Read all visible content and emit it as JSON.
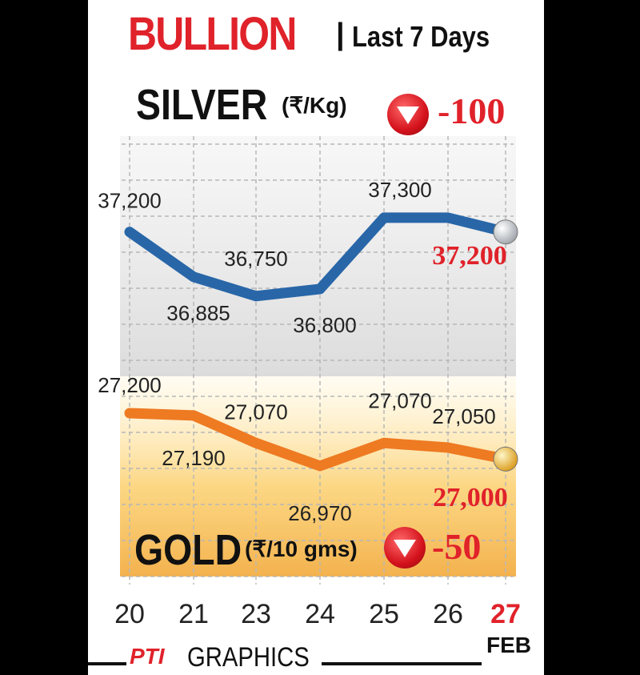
{
  "header": {
    "title": "BULLION",
    "separator": "|",
    "subtitle": "Last 7 Days"
  },
  "silver": {
    "name": "SILVER",
    "unit": "(₹/Kg)",
    "change": "-100",
    "latest": "37,200"
  },
  "gold": {
    "name": "GOLD",
    "unit": "(₹/10 gms)",
    "change": "-50",
    "latest": "27,000"
  },
  "footer": {
    "logo": "PTI",
    "credit": "GRAPHICS",
    "month": "FEB"
  },
  "colors": {
    "silver_line": "#2866a8",
    "gold_line": "#ee7a22",
    "accent_red": "#e0222a",
    "grid": "#b7b7b7"
  },
  "chart_data": {
    "type": "line",
    "categories": [
      "20",
      "21",
      "23",
      "24",
      "25",
      "26",
      "27"
    ],
    "highlight_category": "27",
    "grid": true,
    "series": [
      {
        "name": "SILVER",
        "values": [
          37200,
          36885,
          36750,
          36800,
          37300,
          37300,
          37200
        ],
        "labels": [
          "37,200",
          "36,885",
          "36,750",
          "36,800",
          "37,300",
          "",
          "37,200"
        ],
        "ylim": [
          36300,
          37900
        ]
      },
      {
        "name": "GOLD",
        "values": [
          27200,
          27190,
          27070,
          26970,
          27070,
          27050,
          27000
        ],
        "labels": [
          "27,200",
          "27,190",
          "27,070",
          "26,970",
          "27,070",
          "27,050",
          "27,000"
        ],
        "ylim": [
          26750,
          27500
        ]
      }
    ]
  }
}
